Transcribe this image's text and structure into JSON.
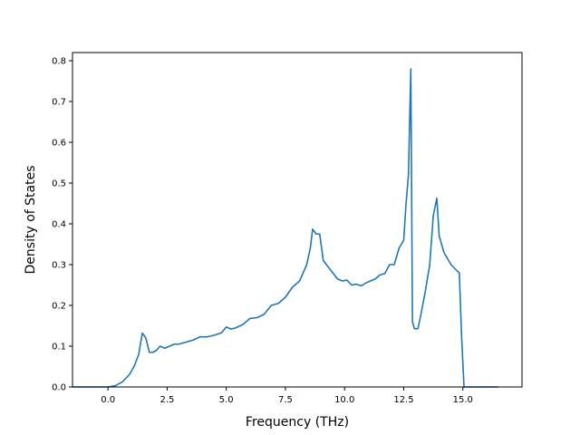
{
  "chart_data": {
    "type": "line",
    "title": "",
    "xlabel": "Frequency (THz)",
    "ylabel": "Density of States",
    "xlim": [
      -1.5,
      17.5
    ],
    "ylim": [
      0.0,
      0.82
    ],
    "grid": false,
    "legend": "none",
    "line_color": "#1f77b4",
    "x_ticks": [
      0.0,
      2.5,
      5.0,
      7.5,
      10.0,
      12.5,
      15.0
    ],
    "x_tick_labels": [
      "0.0",
      "2.5",
      "5.0",
      "7.5",
      "10.0",
      "12.5",
      "15.0"
    ],
    "y_ticks": [
      0.0,
      0.1,
      0.2,
      0.3,
      0.4,
      0.5,
      0.6,
      0.7,
      0.8
    ],
    "y_tick_labels": [
      "0.0",
      "0.1",
      "0.2",
      "0.3",
      "0.4",
      "0.5",
      "0.6",
      "0.7",
      "0.8"
    ],
    "series": [
      {
        "x": [
          -1.5,
          -1.0,
          -0.5,
          0.0,
          0.3,
          0.6,
          0.9,
          1.1,
          1.3,
          1.45,
          1.6,
          1.75,
          1.9,
          2.05,
          2.2,
          2.4,
          2.6,
          2.8,
          3.0,
          3.3,
          3.6,
          3.9,
          4.2,
          4.5,
          4.8,
          5.0,
          5.2,
          5.4,
          5.7,
          6.0,
          6.3,
          6.6,
          6.9,
          7.2,
          7.5,
          7.8,
          8.1,
          8.4,
          8.55,
          8.65,
          8.8,
          8.95,
          9.1,
          9.3,
          9.5,
          9.7,
          9.9,
          10.1,
          10.3,
          10.5,
          10.7,
          10.9,
          11.1,
          11.3,
          11.5,
          11.7,
          11.9,
          12.1,
          12.3,
          12.5,
          12.6,
          12.7,
          12.8,
          12.87,
          12.95,
          13.1,
          13.2,
          13.4,
          13.6,
          13.75,
          13.9,
          14.0,
          14.2,
          14.5,
          14.75,
          14.85,
          14.95,
          15.05,
          15.2,
          15.6,
          16.0,
          16.5
        ],
        "values": [
          0.0,
          0.0,
          0.0,
          0.0,
          0.003,
          0.012,
          0.03,
          0.05,
          0.08,
          0.132,
          0.12,
          0.085,
          0.085,
          0.09,
          0.1,
          0.095,
          0.1,
          0.105,
          0.105,
          0.11,
          0.115,
          0.123,
          0.123,
          0.127,
          0.133,
          0.147,
          0.142,
          0.145,
          0.153,
          0.168,
          0.17,
          0.178,
          0.2,
          0.205,
          0.22,
          0.245,
          0.26,
          0.3,
          0.34,
          0.387,
          0.375,
          0.375,
          0.31,
          0.295,
          0.28,
          0.265,
          0.26,
          0.262,
          0.25,
          0.252,
          0.248,
          0.255,
          0.26,
          0.265,
          0.275,
          0.278,
          0.3,
          0.3,
          0.34,
          0.36,
          0.45,
          0.52,
          0.78,
          0.16,
          0.143,
          0.143,
          0.17,
          0.23,
          0.3,
          0.42,
          0.463,
          0.37,
          0.33,
          0.3,
          0.285,
          0.28,
          0.12,
          0.0,
          0.0,
          0.0,
          0.0,
          0.0
        ]
      }
    ]
  }
}
